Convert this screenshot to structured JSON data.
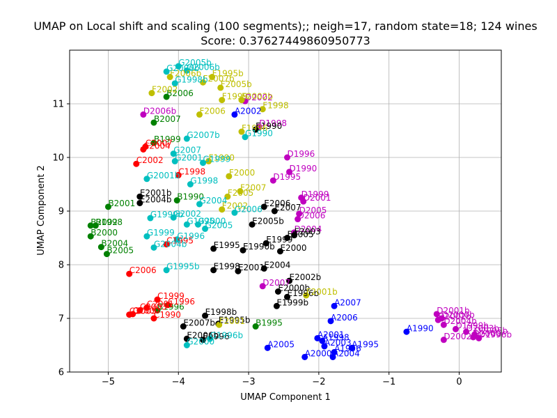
{
  "chart_data": {
    "type": "scatter",
    "title": "UMAP on Local shift and scaling (100 segments);; neigh=17, random state=18; 124 wines",
    "subtitle": "Score: 0.37627449860950773",
    "xlabel": "UMAP Component 1",
    "ylabel": "UMAP Component 2",
    "xlim": [
      -5.55,
      0.6
    ],
    "ylim": [
      6.0,
      12.0
    ],
    "xticks": [
      -5,
      -4,
      -3,
      -2,
      -1,
      0
    ],
    "yticks": [
      6,
      7,
      8,
      9,
      10,
      11
    ],
    "xtick_labels": [
      "−5",
      "−4",
      "−3",
      "−2",
      "−1",
      "0"
    ],
    "ytick_labels": [
      "6",
      "7",
      "8",
      "9",
      "10",
      "11"
    ],
    "grid": true,
    "colors": {
      "A": "#0000ff",
      "B": "#008000",
      "C": "#ff0000",
      "D": "#bf00bf",
      "E": "#000000",
      "F": "#bfbf00",
      "G": "#00bfbf"
    },
    "points": [
      {
        "label": "A2002",
        "x": -3.2,
        "y": 10.8,
        "g": "A"
      },
      {
        "label": "A2007",
        "x": -1.78,
        "y": 7.23,
        "g": "A"
      },
      {
        "label": "A2006",
        "x": -1.83,
        "y": 6.95,
        "g": "A"
      },
      {
        "label": "A1990",
        "x": -0.75,
        "y": 6.75,
        "g": "A"
      },
      {
        "label": "A2001",
        "x": -2.02,
        "y": 6.63,
        "g": "A"
      },
      {
        "label": "A1998",
        "x": -1.95,
        "y": 6.58,
        "g": "A"
      },
      {
        "label": "A2005",
        "x": -2.73,
        "y": 6.45,
        "g": "A"
      },
      {
        "label": "A1995",
        "x": -1.53,
        "y": 6.45,
        "g": "A"
      },
      {
        "label": "A1996",
        "x": -1.78,
        "y": 6.37,
        "g": "A"
      },
      {
        "label": "A2000",
        "x": -2.2,
        "y": 6.28,
        "g": "A"
      },
      {
        "label": "A2004",
        "x": -1.8,
        "y": 6.28,
        "g": "A"
      },
      {
        "label": "A2003",
        "x": -1.92,
        "y": 6.48,
        "g": "A"
      },
      {
        "label": "B2006",
        "x": -4.17,
        "y": 11.13,
        "g": "B"
      },
      {
        "label": "B2007",
        "x": -4.35,
        "y": 10.65,
        "g": "B"
      },
      {
        "label": "B1999",
        "x": -4.35,
        "y": 10.27,
        "g": "B"
      },
      {
        "label": "B1990",
        "x": -4.02,
        "y": 9.2,
        "g": "B"
      },
      {
        "label": "B2001",
        "x": -5.0,
        "y": 9.08,
        "g": "B"
      },
      {
        "label": "B2002",
        "x": -5.25,
        "y": 8.73,
        "g": "B"
      },
      {
        "label": "B1998",
        "x": -5.18,
        "y": 8.73,
        "g": "B"
      },
      {
        "label": "B2000",
        "x": -5.25,
        "y": 8.53,
        "g": "B"
      },
      {
        "label": "B2004",
        "x": -5.1,
        "y": 8.33,
        "g": "B"
      },
      {
        "label": "B2005",
        "x": -5.02,
        "y": 8.2,
        "g": "B"
      },
      {
        "label": "B1996",
        "x": -4.3,
        "y": 7.15,
        "g": "B"
      },
      {
        "label": "B1995",
        "x": -2.9,
        "y": 6.85,
        "g": "B"
      },
      {
        "label": "C2007",
        "x": -4.47,
        "y": 10.2,
        "g": "C"
      },
      {
        "label": "C2004",
        "x": -4.5,
        "y": 10.15,
        "g": "C"
      },
      {
        "label": "C2002",
        "x": -4.6,
        "y": 9.88,
        "g": "C"
      },
      {
        "label": "C1998",
        "x": -4.0,
        "y": 9.67,
        "g": "C"
      },
      {
        "label": "C1995",
        "x": -4.17,
        "y": 8.38,
        "g": "C"
      },
      {
        "label": "C2006",
        "x": -4.7,
        "y": 7.83,
        "g": "C"
      },
      {
        "label": "C1999",
        "x": -4.3,
        "y": 7.35,
        "g": "C"
      },
      {
        "label": "C1996",
        "x": -4.15,
        "y": 7.25,
        "g": "C"
      },
      {
        "label": "C2001",
        "x": -4.45,
        "y": 7.2,
        "g": "C"
      },
      {
        "label": "C2003",
        "x": -4.55,
        "y": 7.15,
        "g": "C"
      },
      {
        "label": "C2000",
        "x": -4.65,
        "y": 7.08,
        "g": "C"
      },
      {
        "label": "C2005",
        "x": -4.7,
        "y": 7.07,
        "g": "C"
      },
      {
        "label": "C1990",
        "x": -4.35,
        "y": 7.0,
        "g": "C"
      },
      {
        "label": "D2002",
        "x": -3.05,
        "y": 11.05,
        "g": "D"
      },
      {
        "label": "D2006b",
        "x": -4.5,
        "y": 10.8,
        "g": "D"
      },
      {
        "label": "D1998",
        "x": -2.85,
        "y": 10.57,
        "g": "D"
      },
      {
        "label": "D1996",
        "x": -2.45,
        "y": 10.0,
        "g": "D"
      },
      {
        "label": "D1990",
        "x": -2.42,
        "y": 9.73,
        "g": "D"
      },
      {
        "label": "D1995",
        "x": -2.65,
        "y": 9.57,
        "g": "D"
      },
      {
        "label": "D1999",
        "x": -2.25,
        "y": 9.25,
        "g": "D"
      },
      {
        "label": "D2001",
        "x": -2.22,
        "y": 9.18,
        "g": "D"
      },
      {
        "label": "D2005",
        "x": -2.28,
        "y": 8.95,
        "g": "D"
      },
      {
        "label": "D2006",
        "x": -2.3,
        "y": 8.85,
        "g": "D"
      },
      {
        "label": "D2004",
        "x": -2.35,
        "y": 8.6,
        "g": "D"
      },
      {
        "label": "D2007",
        "x": -2.8,
        "y": 7.6,
        "g": "D"
      },
      {
        "label": "D2001b",
        "x": -0.32,
        "y": 7.08,
        "g": "D"
      },
      {
        "label": "D2000b",
        "x": -0.25,
        "y": 7.0,
        "g": "D"
      },
      {
        "label": "D2002b",
        "x": -0.3,
        "y": 6.97,
        "g": "D"
      },
      {
        "label": "D2004b",
        "x": -0.22,
        "y": 6.88,
        "g": "D"
      },
      {
        "label": "D1999b",
        "x": -0.05,
        "y": 6.8,
        "g": "D"
      },
      {
        "label": "D2003b",
        "x": 0.1,
        "y": 6.75,
        "g": "D"
      },
      {
        "label": "D2005b",
        "x": 0.22,
        "y": 6.7,
        "g": "D"
      },
      {
        "label": "D2000",
        "x": 0.2,
        "y": 6.65,
        "g": "D"
      },
      {
        "label": "D1996b",
        "x": 0.28,
        "y": 6.63,
        "g": "D"
      },
      {
        "label": "D2002c",
        "x": -0.22,
        "y": 6.6,
        "g": "D"
      },
      {
        "label": "E1990",
        "x": -2.9,
        "y": 10.52,
        "g": "E"
      },
      {
        "label": "E2001b",
        "x": -4.55,
        "y": 9.27,
        "g": "E"
      },
      {
        "label": "E2004b",
        "x": -4.55,
        "y": 9.15,
        "g": "E"
      },
      {
        "label": "E2006",
        "x": -2.78,
        "y": 9.08,
        "g": "E"
      },
      {
        "label": "E2007",
        "x": -2.63,
        "y": 9.0,
        "g": "E"
      },
      {
        "label": "E2005b",
        "x": -2.95,
        "y": 8.75,
        "g": "E"
      },
      {
        "label": "E2003",
        "x": -2.35,
        "y": 8.55,
        "g": "E"
      },
      {
        "label": "E2005",
        "x": -2.45,
        "y": 8.5,
        "g": "E"
      },
      {
        "label": "E1999",
        "x": -2.75,
        "y": 8.4,
        "g": "E"
      },
      {
        "label": "E1995",
        "x": -3.5,
        "y": 8.3,
        "g": "E"
      },
      {
        "label": "E1990b",
        "x": -3.08,
        "y": 8.27,
        "g": "E"
      },
      {
        "label": "E2000",
        "x": -2.55,
        "y": 8.25,
        "g": "E"
      },
      {
        "label": "E1998",
        "x": -3.5,
        "y": 7.9,
        "g": "E"
      },
      {
        "label": "E2004",
        "x": -2.78,
        "y": 7.93,
        "g": "E"
      },
      {
        "label": "E2001",
        "x": -3.15,
        "y": 7.88,
        "g": "E"
      },
      {
        "label": "E2002b",
        "x": -2.42,
        "y": 7.7,
        "g": "E"
      },
      {
        "label": "E2000b",
        "x": -2.58,
        "y": 7.5,
        "g": "E"
      },
      {
        "label": "E1996b",
        "x": -2.45,
        "y": 7.4,
        "g": "E"
      },
      {
        "label": "E1999b",
        "x": -2.6,
        "y": 7.23,
        "g": "E"
      },
      {
        "label": "E1998b",
        "x": -3.62,
        "y": 7.05,
        "g": "E"
      },
      {
        "label": "E1995b",
        "x": -3.43,
        "y": 6.9,
        "g": "E"
      },
      {
        "label": "E2007b",
        "x": -3.93,
        "y": 6.85,
        "g": "E"
      },
      {
        "label": "E2006b",
        "x": -3.88,
        "y": 6.62,
        "g": "E"
      },
      {
        "label": "E1996",
        "x": -3.65,
        "y": 6.6,
        "g": "E"
      },
      {
        "label": "F2006b",
        "x": -4.12,
        "y": 11.5,
        "g": "F"
      },
      {
        "label": "F1995b",
        "x": -3.52,
        "y": 11.5,
        "g": "F"
      },
      {
        "label": "F2007b",
        "x": -3.65,
        "y": 11.4,
        "g": "F"
      },
      {
        "label": "F2005b",
        "x": -3.4,
        "y": 11.3,
        "g": "F"
      },
      {
        "label": "F2002",
        "x": -4.38,
        "y": 11.2,
        "g": "F"
      },
      {
        "label": "F1999",
        "x": -3.38,
        "y": 11.07,
        "g": "F"
      },
      {
        "label": "F2002b",
        "x": -3.1,
        "y": 11.07,
        "g": "F"
      },
      {
        "label": "F1998",
        "x": -2.8,
        "y": 10.9,
        "g": "F"
      },
      {
        "label": "F2006",
        "x": -3.7,
        "y": 10.8,
        "g": "F"
      },
      {
        "label": "F1996",
        "x": -3.1,
        "y": 10.48,
        "g": "F"
      },
      {
        "label": "F1990",
        "x": -3.57,
        "y": 9.93,
        "g": "F"
      },
      {
        "label": "F2000",
        "x": -3.28,
        "y": 9.65,
        "g": "F"
      },
      {
        "label": "F2007",
        "x": -3.12,
        "y": 9.37,
        "g": "F"
      },
      {
        "label": "F2005",
        "x": -3.3,
        "y": 9.27,
        "g": "F"
      },
      {
        "label": "F2002c",
        "x": -3.38,
        "y": 9.03,
        "g": "F"
      },
      {
        "label": "F2001b",
        "x": -2.18,
        "y": 7.43,
        "g": "F"
      },
      {
        "label": "F2001",
        "x": -3.42,
        "y": 6.88,
        "g": "F"
      },
      {
        "label": "G2005b",
        "x": -4.0,
        "y": 11.7,
        "g": "G"
      },
      {
        "label": "G2006b",
        "x": -3.88,
        "y": 11.62,
        "g": "G"
      },
      {
        "label": "G2000b",
        "x": -4.17,
        "y": 11.6,
        "g": "G"
      },
      {
        "label": "G1998b",
        "x": -4.05,
        "y": 11.38,
        "g": "G"
      },
      {
        "label": "G2007b",
        "x": -3.88,
        "y": 10.35,
        "g": "G"
      },
      {
        "label": "G1990",
        "x": -3.05,
        "y": 10.38,
        "g": "G"
      },
      {
        "label": "G2007",
        "x": -4.07,
        "y": 10.07,
        "g": "G"
      },
      {
        "label": "G2001",
        "x": -4.05,
        "y": 9.93,
        "g": "G"
      },
      {
        "label": "G1999",
        "x": -3.65,
        "y": 9.9,
        "g": "G"
      },
      {
        "label": "G2001b",
        "x": -4.45,
        "y": 9.6,
        "g": "G"
      },
      {
        "label": "G1998",
        "x": -3.83,
        "y": 9.5,
        "g": "G"
      },
      {
        "label": "G2004",
        "x": -3.7,
        "y": 9.13,
        "g": "G"
      },
      {
        "label": "G2006",
        "x": -3.2,
        "y": 8.97,
        "g": "G"
      },
      {
        "label": "G1999b",
        "x": -4.4,
        "y": 8.87,
        "g": "G"
      },
      {
        "label": "G2002",
        "x": -4.07,
        "y": 8.88,
        "g": "G"
      },
      {
        "label": "G1995",
        "x": -3.88,
        "y": 8.75,
        "g": "G"
      },
      {
        "label": "G2000",
        "x": -3.72,
        "y": 8.75,
        "g": "G"
      },
      {
        "label": "G2005",
        "x": -3.62,
        "y": 8.67,
        "g": "G"
      },
      {
        "label": "G1999c",
        "x": -4.45,
        "y": 8.53,
        "g": "G"
      },
      {
        "label": "G1996",
        "x": -4.02,
        "y": 8.47,
        "g": "G"
      },
      {
        "label": "G2004b",
        "x": -4.35,
        "y": 8.32,
        "g": "G"
      },
      {
        "label": "G1995b",
        "x": -4.17,
        "y": 7.9,
        "g": "G"
      },
      {
        "label": "G2000c",
        "x": -3.88,
        "y": 6.5,
        "g": "G"
      },
      {
        "label": "G1996b",
        "x": -3.55,
        "y": 6.62,
        "g": "G"
      }
    ]
  }
}
